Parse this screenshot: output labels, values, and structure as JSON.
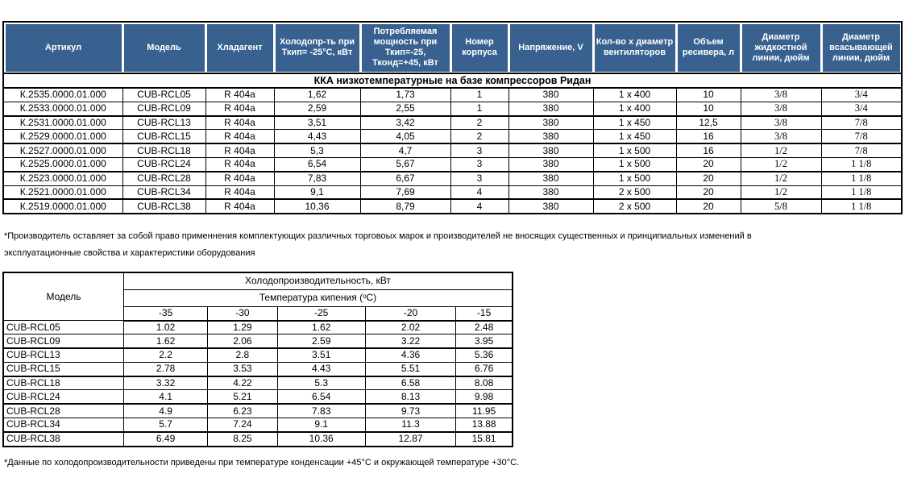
{
  "colors": {
    "header_bg": "#38618f",
    "header_text": "#ffffff",
    "border": "#000000"
  },
  "spec_table": {
    "columns": [
      "Артикул",
      "Модель",
      "Хладагент",
      "Холодопр-ть при Ткип= -25°С, кВт",
      "Потребляемая мощность при Ткип=-25, Тконд=+45, кВт",
      "Номер корпуса",
      "Напряжение, V",
      "Кол-во х диаметр вентиляторов",
      "Объем ресивера, л",
      "Диаметр жидкостной линии, дюйм",
      "Диаметр всасывающей линии, дюйм"
    ],
    "section_title": "ККА низкотемпературные на базе компрессоров Ридан",
    "rows": [
      [
        "К.2535.0000.01.000",
        "CUB-RCL05",
        "R 404a",
        "1,62",
        "1,73",
        "1",
        "380",
        "1 х 400",
        "10",
        "3/8",
        "3/4"
      ],
      [
        "К.2533.0000.01.000",
        "CUB-RCL09",
        "R 404a",
        "2,59",
        "2,55",
        "1",
        "380",
        "1 х 400",
        "10",
        "3/8",
        "3/4"
      ],
      [
        "К.2531.0000.01.000",
        "CUB-RCL13",
        "R 404a",
        "3,51",
        "3,42",
        "2",
        "380",
        "1 х 450",
        "12,5",
        "3/8",
        "7/8"
      ],
      [
        "К.2529.0000.01.000",
        "CUB-RCL15",
        "R 404a",
        "4,43",
        "4,05",
        "2",
        "380",
        "1 х 450",
        "16",
        "3/8",
        "7/8"
      ],
      [
        "К.2527.0000.01.000",
        "CUB-RCL18",
        "R 404a",
        "5,3",
        "4,7",
        "3",
        "380",
        "1 х 500",
        "16",
        "1/2",
        "7/8"
      ],
      [
        "К.2525.0000.01.000",
        "CUB-RCL24",
        "R 404a",
        "6,54",
        "5,67",
        "3",
        "380",
        "1 х 500",
        "20",
        "1/2",
        "1 1/8"
      ],
      [
        "К.2523.0000.01.000",
        "CUB-RCL28",
        "R 404a",
        "7,83",
        "6,67",
        "3",
        "380",
        "1 х 500",
        "20",
        "1/2",
        "1 1/8"
      ],
      [
        "К.2521.0000.01.000",
        "CUB-RCL34",
        "R 404a",
        "9,1",
        "7,69",
        "4",
        "380",
        "2 х 500",
        "20",
        "1/2",
        "1 1/8"
      ],
      [
        "К.2519.0000.01.000",
        "CUB-RCL38",
        "R 404a",
        "10,36",
        "8,79",
        "4",
        "380",
        "2 х 500",
        "20",
        "5/8",
        "1 1/8"
      ]
    ]
  },
  "footnote1_line1": "*Производитель оставляет за собой право применнения комплектующих различных торговоых марок и производителей не вносящих существенных и принципиальных изменений в",
  "footnote1_line2": "эксплуатационные свойства и характеристики оборудования",
  "capacity_table": {
    "model_header": "Модель",
    "group_header": "Холодопроизводительность, кВт",
    "sub_header_pre": "Температура кипения (",
    "sub_header_sup": "о",
    "sub_header_post": "С)",
    "temps": [
      "-35",
      "-30",
      "-25",
      "-20",
      "-15"
    ],
    "rows": [
      {
        "model": "CUB-RCL05",
        "values": [
          "1.02",
          "1.29",
          "1.62",
          "2.02",
          "2.48"
        ]
      },
      {
        "model": "CUB-RCL09",
        "values": [
          "1.62",
          "2.06",
          "2.59",
          "3.22",
          "3.95"
        ]
      },
      {
        "model": "CUB-RCL13",
        "values": [
          "2.2",
          "2.8",
          "3.51",
          "4.36",
          "5.36"
        ]
      },
      {
        "model": "CUB-RCL15",
        "values": [
          "2.78",
          "3.53",
          "4.43",
          "5.51",
          "6.76"
        ]
      },
      {
        "model": "CUB-RCL18",
        "values": [
          "3.32",
          "4.22",
          "5.3",
          "6.58",
          "8.08"
        ]
      },
      {
        "model": "CUB-RCL24",
        "values": [
          "4.1",
          "5.21",
          "6.54",
          "8.13",
          "9.98"
        ]
      },
      {
        "model": "CUB-RCL28",
        "values": [
          "4.9",
          "6.23",
          "7.83",
          "9.73",
          "11.95"
        ]
      },
      {
        "model": "CUB-RCL34",
        "values": [
          "5.7",
          "7.24",
          "9.1",
          "11.3",
          "13.88"
        ]
      },
      {
        "model": "CUB-RCL38",
        "values": [
          "6.49",
          "8.25",
          "10.36",
          "12.87",
          "15.81"
        ]
      }
    ]
  },
  "footnote2": "*Данные по холодопроизводительности приведены при температуре конденсации +45°С и окружающей температуре +30°С."
}
